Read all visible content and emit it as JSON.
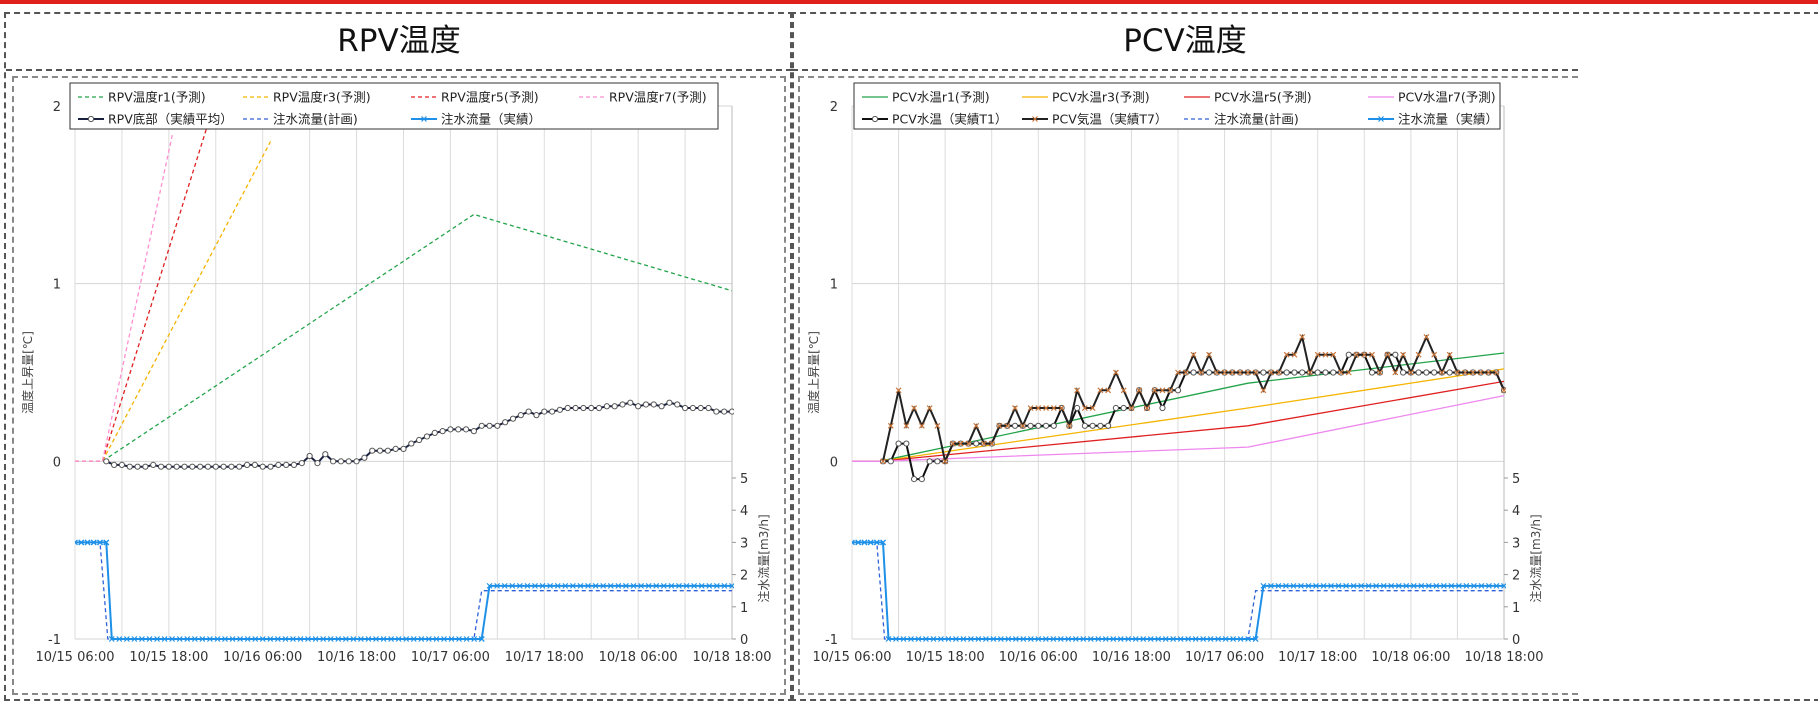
{
  "header": {
    "accent_color": "#e0201c"
  },
  "panels": [
    {
      "title": "RPV温度"
    },
    {
      "title": "PCV温度"
    }
  ],
  "chart_data": [
    {
      "type": "line",
      "title": "RPV温度",
      "ylabel": "温度上昇量[℃]",
      "y2label": "注水流量[m3/h]",
      "xlabel": "",
      "x_tick_labels": [
        "10/15 06:00",
        "10/15 18:00",
        "10/16 06:00",
        "10/16 18:00",
        "10/17 06:00",
        "10/17 18:00",
        "10/18 06:00",
        "10/18 18:00"
      ],
      "x_range_hours": [
        0,
        84
      ],
      "ylim": [
        -1,
        2
      ],
      "y_ticks": [
        -1,
        0,
        1,
        2
      ],
      "y2_ticks": [
        0,
        1,
        2,
        3,
        4,
        5
      ],
      "grid": true,
      "legend_position": "top",
      "legend": [
        "RPV温度r1(予測)",
        "RPV温度r3(予測)",
        "RPV温度r5(予測)",
        "RPV温度r7(予測)",
        "RPV底部（実績平均）",
        "注水流量(計画)",
        "注水流量（実績）"
      ],
      "series": [
        {
          "name": "RPV温度r1(予測)",
          "axis": "y",
          "color": "#22a34a",
          "dash": "dashed",
          "x": [
            0,
            3.5,
            51,
            84
          ],
          "y": [
            0,
            0,
            1.39,
            0.96
          ]
        },
        {
          "name": "RPV温度r3(予測)",
          "axis": "y",
          "color": "#f5b400",
          "dash": "dashed",
          "x": [
            0,
            3.5,
            25
          ],
          "y": [
            0,
            0,
            1.8
          ]
        },
        {
          "name": "RPV温度r5(予測)",
          "axis": "y",
          "color": "#e02020",
          "dash": "dashed",
          "x": [
            0,
            3.5,
            17
          ],
          "y": [
            0,
            0,
            1.9
          ]
        },
        {
          "name": "RPV温度r7(予測)",
          "axis": "y",
          "color": "#ff8ed0",
          "dash": "dashed",
          "x": [
            0,
            3.5,
            12.5
          ],
          "y": [
            0,
            0,
            1.85
          ]
        },
        {
          "name": "RPV底部（実績平均）",
          "axis": "y",
          "color": "#1a2040",
          "marker": "circle",
          "x": [
            4,
            5,
            6,
            7,
            8,
            9,
            10,
            11,
            12,
            13,
            14,
            15,
            16,
            17,
            18,
            19,
            20,
            21,
            22,
            23,
            24,
            25,
            26,
            27,
            28,
            29,
            30,
            31,
            32,
            33,
            34,
            35,
            36,
            37,
            38,
            39,
            40,
            41,
            42,
            43,
            44,
            45,
            46,
            47,
            48,
            49,
            50,
            51,
            52,
            53,
            54,
            55,
            56,
            57,
            58,
            59,
            60,
            61,
            62,
            63,
            64,
            65,
            66,
            67,
            68,
            69,
            70,
            71,
            72,
            73,
            74,
            75,
            76,
            77,
            78,
            79,
            80,
            81,
            82,
            83,
            84
          ],
          "y": [
            0,
            -0.02,
            -0.02,
            -0.03,
            -0.03,
            -0.03,
            -0.02,
            -0.03,
            -0.03,
            -0.03,
            -0.03,
            -0.03,
            -0.03,
            -0.03,
            -0.03,
            -0.03,
            -0.03,
            -0.03,
            -0.02,
            -0.02,
            -0.03,
            -0.03,
            -0.02,
            -0.02,
            -0.02,
            -0.01,
            0.03,
            -0.01,
            0.04,
            0.0,
            0.0,
            0.0,
            0.0,
            0.02,
            0.06,
            0.06,
            0.06,
            0.07,
            0.07,
            0.1,
            0.12,
            0.14,
            0.16,
            0.17,
            0.18,
            0.18,
            0.18,
            0.17,
            0.2,
            0.2,
            0.2,
            0.22,
            0.24,
            0.26,
            0.28,
            0.26,
            0.28,
            0.28,
            0.29,
            0.3,
            0.3,
            0.3,
            0.3,
            0.3,
            0.31,
            0.31,
            0.32,
            0.33,
            0.31,
            0.32,
            0.32,
            0.31,
            0.33,
            0.32,
            0.3,
            0.3,
            0.3,
            0.3,
            0.28,
            0.28,
            0.28
          ]
        },
        {
          "name": "注水流量(計画)",
          "axis": "y2",
          "color": "#3060d8",
          "dash": "dashed",
          "x": [
            0,
            3.2,
            4.2,
            51,
            52,
            84
          ],
          "y": [
            3,
            3,
            0,
            0,
            1.5,
            1.5
          ]
        },
        {
          "name": "注水流量（実績）",
          "axis": "y2",
          "color": "#1e90e8",
          "marker": "x",
          "x": [
            0,
            0.8,
            1.6,
            2.4,
            3.2,
            4,
            4.7,
            52,
            53,
            84
          ],
          "y": [
            3,
            3,
            3,
            3,
            3,
            3,
            0,
            0,
            1.65,
            1.65
          ]
        }
      ]
    },
    {
      "type": "line",
      "title": "PCV温度",
      "ylabel": "温度上昇量[℃]",
      "y2label": "注水流量[m3/h]",
      "xlabel": "",
      "x_tick_labels": [
        "10/15 06:00",
        "10/15 18:00",
        "10/16 06:00",
        "10/16 18:00",
        "10/17 06:00",
        "10/17 18:00",
        "10/18 06:00",
        "10/18 18:00"
      ],
      "x_range_hours": [
        0,
        84
      ],
      "ylim": [
        -1,
        2
      ],
      "y_ticks": [
        -1,
        0,
        1,
        2
      ],
      "y2_ticks": [
        0,
        1,
        2,
        3,
        4,
        5
      ],
      "grid": true,
      "legend_position": "top",
      "legend": [
        "PCV水温r1(予測)",
        "PCV水温r3(予測)",
        "PCV水温r5(予測)",
        "PCV水温r7(予測)",
        "PCV水温（実績T1）",
        "PCV気温（実績T7）",
        "注水流量(計画)",
        "注水流量（実績）"
      ],
      "series": [
        {
          "name": "PCV水温r1(予測)",
          "axis": "y",
          "color": "#22a34a",
          "x": [
            0,
            3.5,
            51,
            84
          ],
          "y": [
            0,
            0,
            0.44,
            0.61
          ]
        },
        {
          "name": "PCV水温r3(予測)",
          "axis": "y",
          "color": "#f5b400",
          "x": [
            0,
            3.5,
            51,
            84
          ],
          "y": [
            0,
            0,
            0.3,
            0.52
          ]
        },
        {
          "name": "PCV水温r5(予測)",
          "axis": "y",
          "color": "#e02020",
          "x": [
            0,
            3.5,
            51,
            84
          ],
          "y": [
            0,
            0,
            0.2,
            0.45
          ]
        },
        {
          "name": "PCV水温r7(予測)",
          "axis": "y",
          "color": "#ee88ee",
          "x": [
            0,
            3.5,
            51,
            84
          ],
          "y": [
            0,
            0,
            0.08,
            0.37
          ]
        },
        {
          "name": "PCV水温（実績T1）",
          "axis": "y",
          "color": "#111111",
          "marker": "circle",
          "x": [
            4,
            5,
            6,
            7,
            8,
            9,
            10,
            11,
            12,
            13,
            14,
            15,
            16,
            17,
            18,
            19,
            20,
            21,
            22,
            23,
            24,
            25,
            26,
            27,
            28,
            29,
            30,
            31,
            32,
            33,
            34,
            35,
            36,
            37,
            38,
            39,
            40,
            41,
            42,
            43,
            44,
            45,
            46,
            47,
            48,
            49,
            50,
            51,
            52,
            53,
            54,
            55,
            56,
            57,
            58,
            59,
            60,
            61,
            62,
            63,
            64,
            65,
            66,
            67,
            68,
            69,
            70,
            71,
            72,
            73,
            74,
            75,
            76,
            77,
            78,
            79,
            80,
            81,
            82,
            83,
            84
          ],
          "y": [
            0,
            0,
            0.1,
            0.1,
            -0.1,
            -0.1,
            0,
            0,
            0,
            0.1,
            0.1,
            0.1,
            0.1,
            0.1,
            0.1,
            0.2,
            0.2,
            0.2,
            0.2,
            0.2,
            0.2,
            0.2,
            0.2,
            0.3,
            0.2,
            0.3,
            0.2,
            0.2,
            0.2,
            0.2,
            0.3,
            0.3,
            0.3,
            0.4,
            0.3,
            0.4,
            0.3,
            0.4,
            0.4,
            0.5,
            0.5,
            0.5,
            0.5,
            0.5,
            0.5,
            0.5,
            0.5,
            0.5,
            0.5,
            0.5,
            0.5,
            0.5,
            0.5,
            0.5,
            0.5,
            0.5,
            0.5,
            0.5,
            0.5,
            0.5,
            0.6,
            0.6,
            0.6,
            0.5,
            0.5,
            0.6,
            0.6,
            0.5,
            0.5,
            0.5,
            0.5,
            0.5,
            0.5,
            0.5,
            0.5,
            0.5,
            0.5,
            0.5,
            0.5,
            0.5,
            0.4
          ]
        },
        {
          "name": "PCV気温（実績T7）",
          "axis": "y",
          "color": "#222222",
          "marker": "x",
          "x": [
            4,
            5,
            6,
            7,
            8,
            9,
            10,
            11,
            12,
            13,
            14,
            15,
            16,
            17,
            18,
            19,
            20,
            21,
            22,
            23,
            24,
            25,
            26,
            27,
            28,
            29,
            30,
            31,
            32,
            33,
            34,
            35,
            36,
            37,
            38,
            39,
            40,
            41,
            42,
            43,
            44,
            45,
            46,
            47,
            48,
            49,
            50,
            51,
            52,
            53,
            54,
            55,
            56,
            57,
            58,
            59,
            60,
            61,
            62,
            63,
            64,
            65,
            66,
            67,
            68,
            69,
            70,
            71,
            72,
            73,
            74,
            75,
            76,
            77,
            78,
            79,
            80,
            81,
            82,
            83,
            84
          ],
          "y": [
            0,
            0.2,
            0.4,
            0.2,
            0.3,
            0.2,
            0.3,
            0.2,
            0,
            0.1,
            0.1,
            0.1,
            0.2,
            0.1,
            0.1,
            0.2,
            0.2,
            0.3,
            0.2,
            0.3,
            0.3,
            0.3,
            0.3,
            0.3,
            0.2,
            0.4,
            0.3,
            0.3,
            0.4,
            0.4,
            0.5,
            0.4,
            0.3,
            0.4,
            0.3,
            0.4,
            0.4,
            0.4,
            0.5,
            0.5,
            0.6,
            0.5,
            0.6,
            0.5,
            0.5,
            0.5,
            0.5,
            0.5,
            0.5,
            0.4,
            0.5,
            0.5,
            0.6,
            0.6,
            0.7,
            0.5,
            0.6,
            0.6,
            0.6,
            0.5,
            0.5,
            0.6,
            0.6,
            0.6,
            0.5,
            0.6,
            0.5,
            0.6,
            0.5,
            0.6,
            0.7,
            0.6,
            0.5,
            0.6,
            0.5,
            0.5,
            0.5,
            0.5,
            0.5,
            0.5,
            0.4
          ]
        },
        {
          "name": "注水流量(計画)",
          "axis": "y2",
          "color": "#3060d8",
          "dash": "dashed",
          "x": [
            0,
            3.2,
            4.2,
            51,
            52,
            84
          ],
          "y": [
            3,
            3,
            0,
            0,
            1.5,
            1.5
          ]
        },
        {
          "name": "注水流量（実績）",
          "axis": "y2",
          "color": "#1e90e8",
          "marker": "x",
          "x": [
            0,
            0.8,
            1.6,
            2.4,
            3.2,
            4,
            4.7,
            52,
            53,
            84
          ],
          "y": [
            3,
            3,
            3,
            3,
            3,
            3,
            0,
            0,
            1.65,
            1.65
          ]
        }
      ]
    }
  ]
}
